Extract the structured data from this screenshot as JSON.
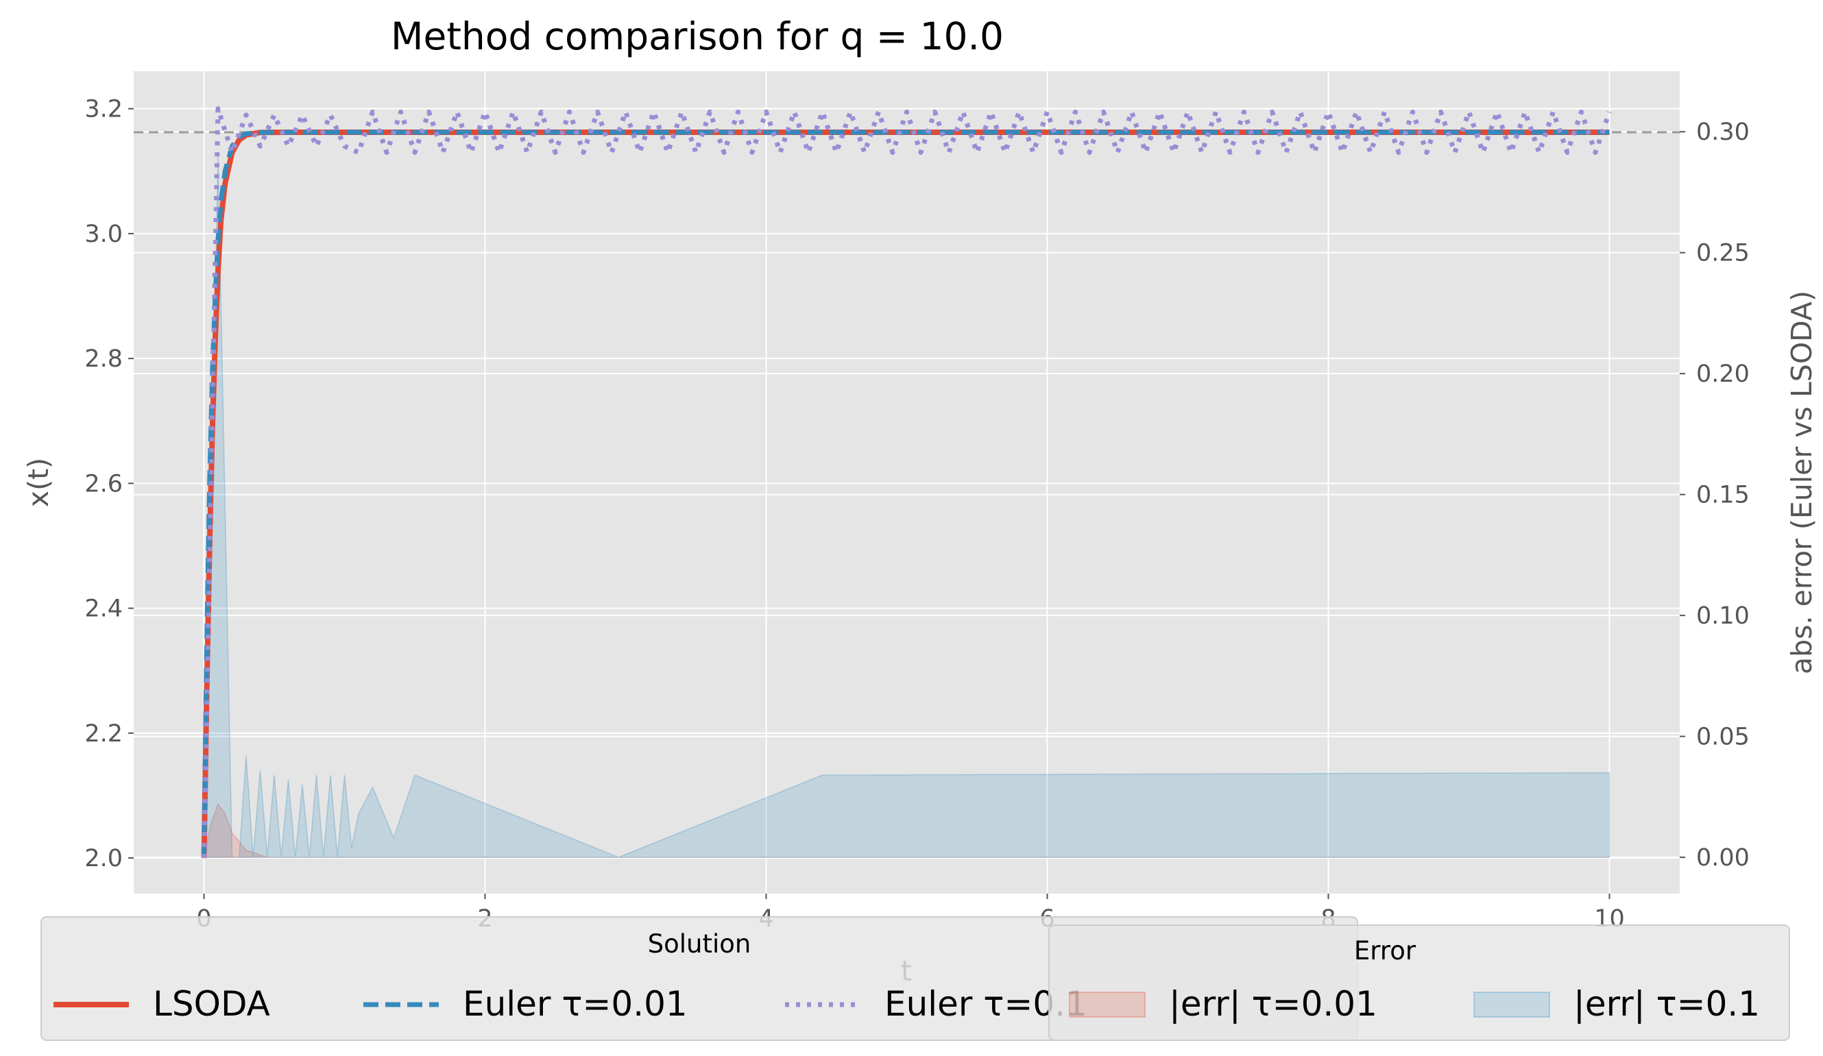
{
  "chart_data": {
    "type": "line",
    "title": "Method comparison for q = 10.0",
    "xlabel": "t",
    "ylabel": "x(t)",
    "y2label": "abs. error (Euler vs LSODA)",
    "xlim": [
      -0.5,
      10.5
    ],
    "ylim": [
      1.943,
      3.26
    ],
    "y2lim": [
      -0.015,
      0.325
    ],
    "x_ticks": [
      0,
      2,
      4,
      6,
      8,
      10
    ],
    "y_ticks": [
      2.0,
      2.2,
      2.4,
      2.6,
      2.8,
      3.0,
      3.2
    ],
    "y2_ticks": [
      0.0,
      0.05,
      0.1,
      0.15,
      0.2,
      0.25,
      0.3
    ],
    "x_tick_labels": [
      "0",
      "2",
      "4",
      "6",
      "8",
      "10"
    ],
    "y_tick_labels": [
      "2.0",
      "2.2",
      "2.4",
      "2.6",
      "2.8",
      "3.0",
      "3.2"
    ],
    "y2_tick_labels": [
      "0.00",
      "0.05",
      "0.10",
      "0.15",
      "0.20",
      "0.25",
      "0.30"
    ],
    "reference_line": {
      "y": 3.1623,
      "style": "dashed",
      "color": "#999999"
    },
    "grid": true,
    "series": [
      {
        "name": "LSODA",
        "axis": "left",
        "style": "solid",
        "color": "#E24A33",
        "x": [
          0,
          0.02,
          0.04,
          0.06,
          0.08,
          0.1,
          0.12,
          0.15,
          0.2,
          0.25,
          0.3,
          0.4,
          0.6,
          1.0,
          10.0
        ],
        "values": [
          2.0,
          2.27,
          2.5,
          2.69,
          2.83,
          2.94,
          3.02,
          3.08,
          3.13,
          3.15,
          3.158,
          3.162,
          3.1623,
          3.1623,
          3.1623
        ]
      },
      {
        "name": "Euler τ=0.01",
        "axis": "left",
        "style": "dashed",
        "color": "#348ABD",
        "x": [
          0,
          0.02,
          0.04,
          0.06,
          0.08,
          0.1,
          0.12,
          0.15,
          0.2,
          0.25,
          0.3,
          0.4,
          0.6,
          1.0,
          10.0
        ],
        "values": [
          2.0,
          2.35,
          2.6,
          2.78,
          2.9,
          2.99,
          3.05,
          3.1,
          3.14,
          3.155,
          3.16,
          3.162,
          3.1623,
          3.1623,
          3.1623
        ]
      },
      {
        "name": "Euler τ=0.1",
        "axis": "left",
        "style": "dotted",
        "color": "#988ED5",
        "x": [
          0,
          0.1,
          0.2,
          0.3,
          0.4,
          0.5,
          0.6,
          0.7,
          0.8,
          0.9,
          1.0,
          10.0
        ],
        "values": [
          2.0,
          3.2,
          3.13,
          3.19,
          3.14,
          3.19,
          3.14,
          3.19,
          3.14,
          3.19,
          3.14,
          3.14
        ],
        "oscillation": {
          "from": 1.0,
          "period": 0.2,
          "max": 3.195,
          "min": 3.13
        }
      }
    ],
    "error_series": [
      {
        "name": "|err| τ=0.01",
        "axis": "right",
        "type": "area",
        "color": "#E24A33",
        "x": [
          0,
          0.05,
          0.1,
          0.15,
          0.2,
          0.3,
          0.45,
          10.0
        ],
        "values": [
          0.0,
          0.014,
          0.022,
          0.018,
          0.01,
          0.003,
          0.0,
          0.0
        ]
      },
      {
        "name": "|err| τ=0.1",
        "axis": "right",
        "type": "area",
        "color": "#348ABD",
        "x": [
          0,
          0.1,
          0.2,
          0.25,
          0.3,
          0.35,
          0.4,
          0.45,
          0.5,
          0.55,
          0.6,
          0.65,
          0.7,
          0.75,
          0.8,
          0.85,
          0.9,
          0.95,
          1.0,
          1.05,
          1.1,
          1.2,
          1.35,
          1.5,
          2.95,
          4.4,
          10.0
        ],
        "values": [
          0.0,
          0.29,
          0.0,
          0.0,
          0.042,
          0.0,
          0.036,
          0.0,
          0.034,
          0.0,
          0.032,
          0.0,
          0.03,
          0.0,
          0.034,
          0.0,
          0.034,
          0.0,
          0.034,
          0.004,
          0.018,
          0.029,
          0.008,
          0.034,
          0.0,
          0.034,
          0.035
        ]
      }
    ],
    "legends": [
      {
        "title": "Solution",
        "entries": [
          {
            "label": "LSODA",
            "kind": "solid",
            "color": "#E24A33"
          },
          {
            "label": "Euler τ=0.01",
            "kind": "dashed",
            "color": "#348ABD"
          },
          {
            "label": "Euler τ=0.1",
            "kind": "dotted",
            "color": "#988ED5"
          }
        ]
      },
      {
        "title": "Error",
        "entries": [
          {
            "label": "|err| τ=0.01",
            "kind": "patch",
            "color": "#E24A33"
          },
          {
            "label": "|err| τ=0.1",
            "kind": "patch",
            "color": "#348ABD"
          }
        ]
      }
    ],
    "legend_placement": "bottom",
    "colors": {
      "background": "#E5E5E5",
      "grid": "#FFFFFF",
      "lsoda": "#E24A33",
      "euler_001": "#348ABD",
      "euler_01": "#988ED5"
    }
  }
}
